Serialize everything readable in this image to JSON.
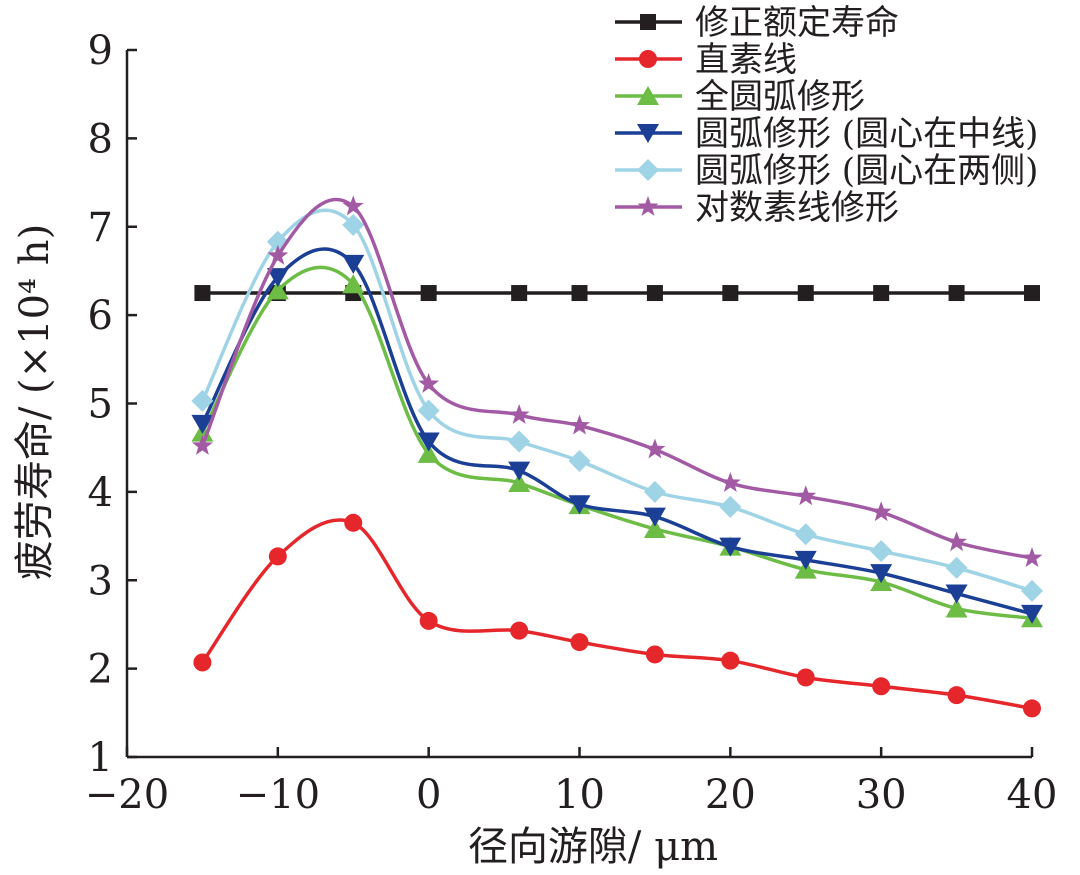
{
  "chart_data": {
    "type": "line",
    "title": "",
    "xlabel": "径向游隙/ μm",
    "ylabel": "疲劳寿命/ (×10⁴ h)",
    "xlim": [
      -20,
      40
    ],
    "ylim": [
      1,
      9
    ],
    "xticks": [
      -20,
      -10,
      0,
      10,
      20,
      30,
      40
    ],
    "yticks": [
      1,
      2,
      3,
      4,
      5,
      6,
      7,
      8,
      9
    ],
    "xtick_labels": [
      "−20",
      "−10",
      "0",
      "10",
      "20",
      "30",
      "40"
    ],
    "ytick_labels": [
      "1",
      "2",
      "3",
      "4",
      "5",
      "6",
      "7",
      "8",
      "9"
    ],
    "grid": false,
    "legend_position": "top-right",
    "series": [
      {
        "name": "修正额定寿命",
        "color": "#231f20",
        "marker": "square",
        "smooth": false,
        "x": [
          -15,
          -10,
          -5,
          0,
          6,
          10,
          15,
          20,
          25,
          30,
          35,
          40
        ],
        "y": [
          6.25,
          6.25,
          6.25,
          6.25,
          6.25,
          6.25,
          6.25,
          6.25,
          6.25,
          6.25,
          6.25,
          6.25
        ]
      },
      {
        "name": "直素线",
        "color": "#e5262b",
        "marker": "circle",
        "smooth": true,
        "x": [
          -15,
          -10,
          -5,
          0,
          6,
          10,
          15,
          20,
          25,
          30,
          35,
          40
        ],
        "y": [
          2.07,
          3.27,
          3.65,
          2.54,
          2.43,
          2.3,
          2.16,
          2.09,
          1.9,
          1.8,
          1.7,
          1.55
        ]
      },
      {
        "name": "全圆弧修形",
        "color": "#6cbc45",
        "marker": "triangle-up",
        "smooth": true,
        "x": [
          -15,
          -10,
          -5,
          0,
          6,
          10,
          15,
          20,
          25,
          30,
          35,
          40
        ],
        "y": [
          4.67,
          6.28,
          6.35,
          4.43,
          4.1,
          3.85,
          3.58,
          3.38,
          3.12,
          2.98,
          2.68,
          2.57
        ]
      },
      {
        "name": "圆弧修形 (圆心在中线)",
        "color": "#1a3f95",
        "marker": "triangle-down",
        "smooth": true,
        "x": [
          -15,
          -10,
          -5,
          0,
          6,
          10,
          15,
          20,
          25,
          30,
          35,
          40
        ],
        "y": [
          4.77,
          6.43,
          6.58,
          4.57,
          4.24,
          3.86,
          3.72,
          3.38,
          3.23,
          3.08,
          2.85,
          2.62
        ]
      },
      {
        "name": "圆弧修形 (圆心在两侧)",
        "color": "#9fd3e6",
        "marker": "diamond",
        "smooth": true,
        "x": [
          -15,
          -10,
          -5,
          0,
          6,
          10,
          15,
          20,
          25,
          30,
          35,
          40
        ],
        "y": [
          5.03,
          6.83,
          7.02,
          4.92,
          4.57,
          4.35,
          4.0,
          3.83,
          3.52,
          3.33,
          3.14,
          2.88
        ]
      },
      {
        "name": "对数素线修形",
        "color": "#a35aa5",
        "marker": "star",
        "smooth": true,
        "x": [
          -15,
          -10,
          -5,
          0,
          6,
          10,
          15,
          20,
          25,
          30,
          35,
          40
        ],
        "y": [
          4.52,
          6.67,
          7.23,
          5.22,
          4.87,
          4.75,
          4.48,
          4.1,
          3.95,
          3.77,
          3.43,
          3.25
        ]
      }
    ]
  }
}
